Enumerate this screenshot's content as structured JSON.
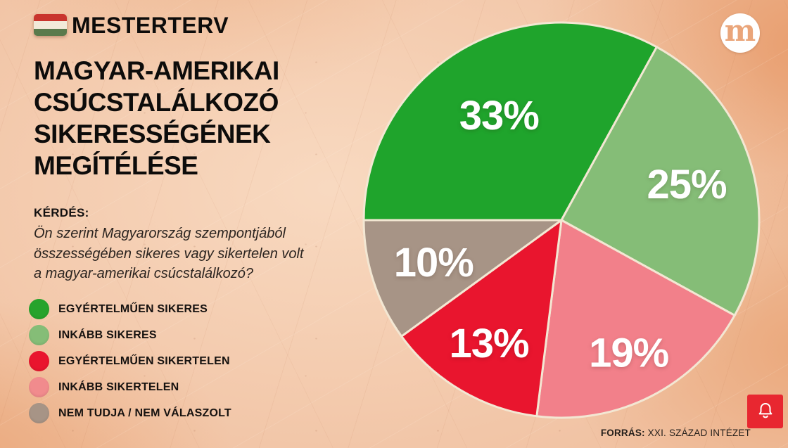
{
  "header": {
    "brand": "MESTERTERV",
    "flag_colors": {
      "red": "#c9342d",
      "white": "#f2ead9",
      "green": "#5a7a4c"
    }
  },
  "title": "MAGYAR-AMERIKAI\nCSÚCSTALÁLKOZÓ\nSIKERESSÉGÉNEK\nMEGÍTÉLÉSE",
  "question": {
    "label": "KÉRDÉS:",
    "text": "Ön szerint Magyarország szempontjából\nösszességében sikeres vagy sikertelen volt\na magyar-amerikai csúcstalálkozó?"
  },
  "legend": {
    "items": [
      {
        "label": "EGYÉRTELMŰEN SIKERES",
        "color": "#27a32c"
      },
      {
        "label": "INKÁBB SIKERES",
        "color": "#85bd77"
      },
      {
        "label": "EGYÉRTELMŰEN SIKERTELEN",
        "color": "#e9152e"
      },
      {
        "label": "INKÁBB SIKERTELEN",
        "color": "#f18b8d"
      },
      {
        "label": "NEM TUDJA / NEM VÁLASZOLT",
        "color": "#a79486"
      }
    ]
  },
  "chart_data": {
    "type": "pie",
    "title": "Magyar-amerikai csúcstalálkozó sikerességének megítélése",
    "categories": [
      "Egyértelműen sikeres",
      "Inkább sikeres",
      "Inkább sikertelen",
      "Egyértelműen sikertelen",
      "Nem tudja / nem válaszolt"
    ],
    "values": [
      33,
      25,
      19,
      13,
      10
    ],
    "labels": [
      "33%",
      "25%",
      "19%",
      "13%",
      "10%"
    ],
    "colors": [
      "#1fa42c",
      "#85bd77",
      "#f2808a",
      "#e9152e",
      "#a79486"
    ],
    "start_angle_deg": 270,
    "direction": "clockwise",
    "separator_color": "#f3e7d3",
    "label_color": "#ffffff",
    "legend_position": "left"
  },
  "logo": {
    "letter": "m",
    "circle_color": "#ffffff",
    "letter_color": "#eaa57a"
  },
  "notification": {
    "color": "#e82730"
  },
  "footer": {
    "source_label": "FORRÁS:",
    "source_text": " XXI. SZÁZAD INTÉZET"
  }
}
